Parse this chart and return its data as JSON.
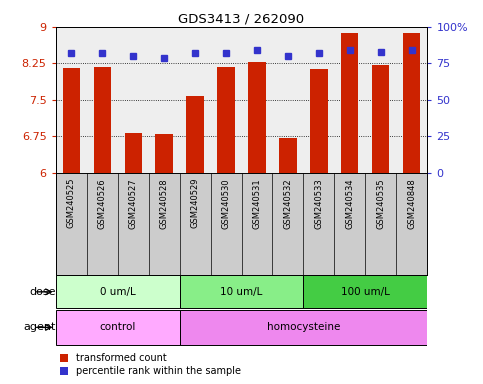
{
  "title": "GDS3413 / 262090",
  "samples": [
    "GSM240525",
    "GSM240526",
    "GSM240527",
    "GSM240528",
    "GSM240529",
    "GSM240530",
    "GSM240531",
    "GSM240532",
    "GSM240533",
    "GSM240534",
    "GSM240535",
    "GSM240848"
  ],
  "bar_values": [
    8.15,
    8.18,
    6.82,
    6.8,
    7.57,
    8.18,
    8.28,
    6.72,
    8.14,
    8.88,
    8.21,
    8.87
  ],
  "percentile_values": [
    82,
    82,
    80,
    79,
    82,
    82,
    84,
    80,
    82,
    84,
    83,
    84
  ],
  "bar_color": "#cc2200",
  "dot_color": "#3333cc",
  "ylim_left": [
    6,
    9
  ],
  "ylim_right": [
    0,
    100
  ],
  "yticks_left": [
    6,
    6.75,
    7.5,
    8.25,
    9
  ],
  "yticks_right": [
    0,
    25,
    50,
    75,
    100
  ],
  "ytick_labels_left": [
    "6",
    "6.75",
    "7.5",
    "8.25",
    "9"
  ],
  "ytick_labels_right": [
    "0",
    "25",
    "50",
    "75",
    "100%"
  ],
  "dose_groups": [
    {
      "label": "0 um/L",
      "start": 0,
      "end": 4,
      "color": "#ccffcc"
    },
    {
      "label": "10 um/L",
      "start": 4,
      "end": 8,
      "color": "#88ee88"
    },
    {
      "label": "100 um/L",
      "start": 8,
      "end": 12,
      "color": "#44cc44"
    }
  ],
  "agent_groups": [
    {
      "label": "control",
      "start": 0,
      "end": 4,
      "color": "#ffaaff"
    },
    {
      "label": "homocysteine",
      "start": 4,
      "end": 12,
      "color": "#ee88ee"
    }
  ],
  "dose_label": "dose",
  "agent_label": "agent",
  "legend_items": [
    {
      "label": "transformed count",
      "color": "#cc2200"
    },
    {
      "label": "percentile rank within the sample",
      "color": "#3333cc"
    }
  ],
  "background_color": "#ffffff",
  "plot_bg_color": "#eeeeee",
  "bar_width": 0.55,
  "label_bg_color": "#cccccc"
}
